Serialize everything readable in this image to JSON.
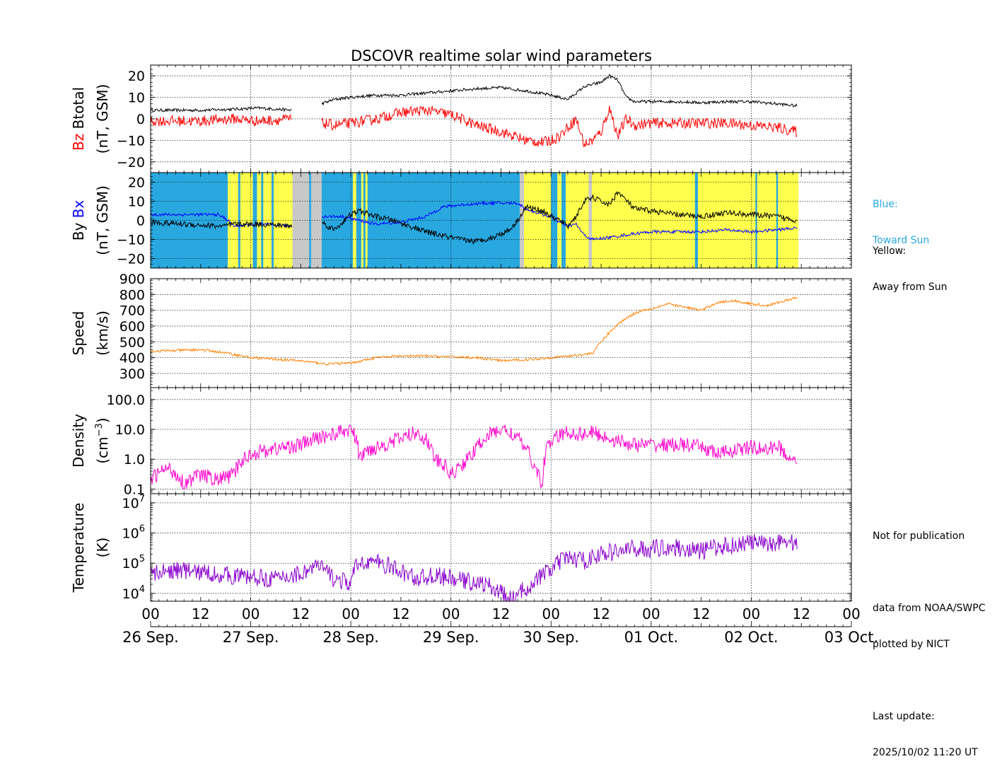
{
  "title": "DSCOVR realtime solar wind parameters",
  "colors": {
    "bz": "#ff0000",
    "btotal": "#000000",
    "bx": "#0000ff",
    "by": "#000000",
    "speed": "#ff8000",
    "density": "#ff00cc",
    "temperature": "#8800cc",
    "toward_sun": "#29a8e0",
    "away_from_sun": "#ffff4d",
    "gap": "#c8c8c8"
  },
  "time_axis": {
    "range_hours": [
      0,
      168
    ],
    "hour_ticks": [
      "00",
      "12",
      "00",
      "12",
      "00",
      "12",
      "00",
      "12",
      "00",
      "12",
      "00",
      "12",
      "00",
      "12",
      "00"
    ],
    "date_ticks": [
      "26 Sep.",
      "27 Sep.",
      "28 Sep.",
      "29 Sep.",
      "30 Sep.",
      "01 Oct.",
      "02 Oct.",
      "03 Oct."
    ],
    "data_end_hour": 155.3
  },
  "legend": {
    "blue_title": "Blue:",
    "blue_text": "Toward Sun",
    "yellow_title": "Yellow:",
    "yellow_text": "Away from Sun"
  },
  "notes": {
    "publication": "Not for publication",
    "source_1": "data from NOAA/SWPC",
    "source_2": "plotted by NICT",
    "update_label": "Last update:",
    "update_value": "2025/10/02 11:20 UT"
  },
  "chart_data": [
    {
      "type": "line",
      "id": "btotal_bz",
      "ylabel_parts": [
        "Bz",
        "Btotal",
        "(nT, GSM)"
      ],
      "ylim": [
        -25,
        25
      ],
      "yticks": [
        -20,
        -10,
        0,
        10,
        20
      ],
      "ytick_labels": [
        "−20",
        "−10",
        "0",
        "10",
        "20"
      ],
      "scale": "linear",
      "series": [
        {
          "name": "Btotal",
          "color": "#000000",
          "noise": 0.7,
          "x": [
            0,
            12,
            20,
            26,
            34,
            38,
            41,
            44,
            48,
            54,
            60,
            66,
            72,
            78,
            84,
            90,
            93,
            96,
            100,
            102,
            104,
            108,
            110,
            112,
            114,
            116,
            120,
            126,
            132,
            138,
            144,
            150,
            155
          ],
          "y": [
            4,
            4,
            4.5,
            5,
            4,
            null,
            7,
            9,
            10,
            11,
            11,
            12,
            13,
            14,
            14.5,
            13,
            12,
            11,
            9,
            12,
            15,
            17,
            20,
            18,
            10,
            8,
            8,
            8,
            7.5,
            8,
            8,
            7,
            6
          ]
        },
        {
          "name": "Bz",
          "color": "#ff0000",
          "noise": 2.5,
          "x": [
            0,
            12,
            20,
            26,
            34,
            38,
            41,
            44,
            48,
            54,
            60,
            66,
            72,
            78,
            84,
            90,
            94,
            96,
            98,
            100,
            102,
            104,
            106,
            108,
            110,
            112,
            114,
            116,
            120,
            126,
            132,
            138,
            144,
            150,
            155
          ],
          "y": [
            -1,
            -1,
            0,
            -1,
            0,
            null,
            -2,
            -3,
            -2,
            0,
            3,
            4,
            2,
            -3,
            -6,
            -10,
            -11,
            -10,
            -8,
            -4,
            0,
            -12,
            -10,
            -6,
            5,
            -8,
            0,
            -3,
            -2,
            -2,
            -2,
            -2,
            -3,
            -4,
            -6
          ]
        }
      ]
    },
    {
      "type": "line",
      "id": "bx_by",
      "ylabel_parts": [
        "By",
        "Bx",
        "(nT, GSM)"
      ],
      "ylim": [
        -25,
        25
      ],
      "yticks": [
        -20,
        -10,
        0,
        10,
        20
      ],
      "ytick_labels": [
        "−20",
        "−10",
        "0",
        "10",
        "20"
      ],
      "scale": "linear",
      "sector_bands": [
        {
          "from": 0,
          "to": 18.5,
          "sector": "toward"
        },
        {
          "from": 18.5,
          "to": 34,
          "sector": "away"
        },
        {
          "from": 34,
          "to": 38,
          "sector": "gap"
        },
        {
          "from": 38,
          "to": 38.5,
          "sector": "toward"
        },
        {
          "from": 38.5,
          "to": 41,
          "sector": "gap"
        },
        {
          "from": 41,
          "to": 88.5,
          "sector": "toward"
        },
        {
          "from": 88.5,
          "to": 89.5,
          "sector": "gap"
        },
        {
          "from": 89.5,
          "to": 155.3,
          "sector": "away"
        }
      ],
      "sector_flips": [
        {
          "at": 21,
          "sector": "toward",
          "width": 0.5
        },
        {
          "at": 24.5,
          "sector": "toward",
          "width": 1
        },
        {
          "at": 26.5,
          "sector": "toward",
          "width": 0.5
        },
        {
          "at": 29,
          "sector": "toward",
          "width": 0.5
        },
        {
          "at": 48.5,
          "sector": "away",
          "width": 0.8
        },
        {
          "at": 50.5,
          "sector": "away",
          "width": 0.5
        },
        {
          "at": 51.5,
          "sector": "away",
          "width": 0.5
        },
        {
          "at": 96,
          "sector": "toward",
          "width": 1.5
        },
        {
          "at": 98.5,
          "sector": "toward",
          "width": 1
        },
        {
          "at": 105,
          "sector": "gap",
          "width": 0.8
        },
        {
          "at": 130.5,
          "sector": "toward",
          "width": 0.7
        },
        {
          "at": 145,
          "sector": "toward",
          "width": 0.4
        },
        {
          "at": 150,
          "sector": "toward",
          "width": 0.4
        }
      ],
      "series": [
        {
          "name": "Bx",
          "color": "#0000ff",
          "noise": 0.8,
          "x": [
            0,
            8,
            16,
            18,
            20,
            26,
            34,
            38,
            41,
            46,
            50,
            54,
            60,
            66,
            70,
            74,
            80,
            84,
            88,
            90,
            94,
            96,
            98,
            100,
            102,
            104,
            106,
            110,
            116,
            120,
            126,
            132,
            138,
            144,
            150,
            155
          ],
          "y": [
            3,
            3,
            3,
            1,
            -3,
            -2,
            -3,
            null,
            2,
            2,
            0,
            -2,
            -1,
            2,
            7,
            8,
            9,
            9,
            9,
            6,
            3,
            2,
            -1,
            -3,
            -2,
            -8,
            -10,
            -9,
            -7,
            -6,
            -6,
            -6,
            -5,
            -6,
            -5,
            -4
          ]
        },
        {
          "name": "By",
          "color": "#000000",
          "noise": 1.5,
          "x": [
            0,
            8,
            16,
            18,
            20,
            26,
            34,
            38,
            41,
            44,
            48,
            50,
            54,
            58,
            62,
            66,
            70,
            74,
            78,
            82,
            86,
            88,
            90,
            94,
            96,
            98,
            100,
            102,
            104,
            106,
            108,
            110,
            112,
            116,
            120,
            126,
            132,
            138,
            144,
            150,
            155
          ],
          "y": [
            -1,
            -2,
            -3,
            -3,
            -2,
            -2,
            -3,
            null,
            -1,
            -5,
            3,
            5,
            2,
            0,
            -3,
            -6,
            -8,
            -10,
            -11,
            -9,
            -5,
            0,
            7,
            5,
            2,
            0,
            -3,
            2,
            10,
            12,
            10,
            8,
            15,
            6,
            5,
            3,
            2,
            4,
            3,
            2,
            0
          ]
        }
      ]
    },
    {
      "type": "line",
      "id": "speed",
      "ylabel_parts": [
        "Speed",
        "(km/s)"
      ],
      "ylim": [
        210,
        900
      ],
      "yticks": [
        300,
        400,
        500,
        600,
        700,
        800,
        900
      ],
      "ytick_labels": [
        "300",
        "400",
        "500",
        "600",
        "700",
        "800",
        "900"
      ],
      "scale": "linear",
      "series": [
        {
          "name": "Speed",
          "color": "#ff8000",
          "noise": 8,
          "x": [
            0,
            6,
            12,
            18,
            24,
            30,
            36,
            42,
            48,
            54,
            60,
            66,
            72,
            78,
            84,
            88,
            92,
            96,
            100,
            104,
            106,
            108,
            110,
            112,
            114,
            116,
            118,
            120,
            124,
            128,
            132,
            136,
            140,
            144,
            148,
            152,
            155
          ],
          "y": [
            440,
            445,
            450,
            430,
            400,
            390,
            380,
            360,
            365,
            400,
            410,
            410,
            405,
            400,
            380,
            385,
            390,
            400,
            410,
            420,
            430,
            500,
            560,
            610,
            650,
            680,
            700,
            710,
            740,
            720,
            700,
            750,
            760,
            740,
            730,
            760,
            780
          ]
        }
      ]
    },
    {
      "type": "line",
      "id": "density",
      "ylabel_parts": [
        "Density",
        "(cm",
        "−3",
        ")"
      ],
      "ylim": [
        0.07,
        250
      ],
      "yticks": [
        0.1,
        1,
        10,
        100
      ],
      "ytick_labels": [
        "0.1",
        "1.0",
        "10.0",
        "100.0"
      ],
      "scale": "log",
      "series": [
        {
          "name": "Density",
          "color": "#ff00cc",
          "noise": 0.25,
          "x": [
            0,
            4,
            8,
            12,
            16,
            20,
            24,
            28,
            32,
            36,
            40,
            44,
            48,
            50,
            52,
            56,
            60,
            64,
            68,
            72,
            74,
            76,
            78,
            80,
            84,
            86,
            90,
            92,
            94,
            96,
            98,
            100,
            102,
            104,
            106,
            108,
            110,
            112,
            116,
            120,
            124,
            128,
            132,
            136,
            140,
            144,
            148,
            150,
            152,
            154,
            155
          ],
          "y": [
            0.2,
            0.5,
            0.15,
            0.3,
            0.2,
            0.3,
            1.5,
            2,
            2.5,
            3,
            5,
            7,
            10,
            1,
            2,
            3,
            5,
            8,
            1,
            0.3,
            0.5,
            1,
            2,
            5,
            10,
            8,
            2,
            0.5,
            0.1,
            4,
            6,
            8,
            7,
            7,
            8,
            6,
            5,
            4,
            3,
            3,
            3,
            3,
            2.5,
            1.5,
            2,
            2.5,
            2,
            3,
            1.5,
            1,
            1.2
          ]
        }
      ]
    },
    {
      "type": "line",
      "id": "temperature",
      "ylabel_parts": [
        "Temperature",
        "(K)"
      ],
      "ylim": [
        5500,
        20000000
      ],
      "yticks": [
        10000,
        100000,
        1000000,
        10000000
      ],
      "ytick_labels": [
        "10^4",
        "10^5",
        "10^6",
        "10^7"
      ],
      "scale": "log",
      "series": [
        {
          "name": "Temperature",
          "color": "#8800cc",
          "noise": 0.3,
          "x": [
            0,
            6,
            12,
            18,
            24,
            30,
            36,
            40,
            44,
            48,
            50,
            52,
            56,
            60,
            64,
            68,
            72,
            76,
            80,
            84,
            86,
            88,
            90,
            92,
            94,
            96,
            100,
            104,
            108,
            112,
            116,
            120,
            124,
            128,
            132,
            136,
            140,
            144,
            148,
            152,
            155
          ],
          "y": [
            40000,
            60000,
            50000,
            40000,
            35000,
            30000,
            45000,
            80000,
            30000,
            20000,
            100000,
            120000,
            90000,
            50000,
            30000,
            40000,
            30000,
            25000,
            20000,
            10000,
            6000,
            8000,
            15000,
            25000,
            40000,
            60000,
            150000,
            120000,
            200000,
            250000,
            300000,
            300000,
            350000,
            300000,
            250000,
            350000,
            400000,
            500000,
            400000,
            600000,
            400000
          ]
        }
      ]
    }
  ]
}
